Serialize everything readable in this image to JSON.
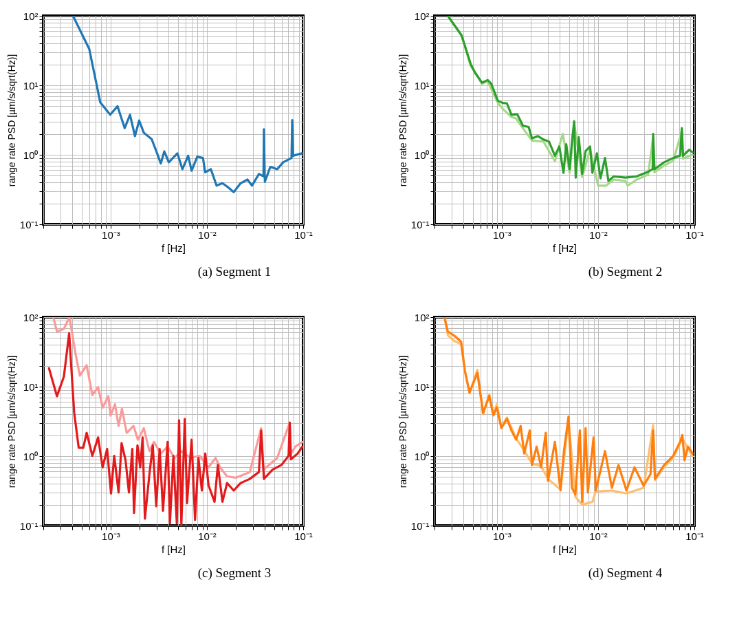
{
  "chart_data": [
    {
      "type": "line",
      "title": "(a) Segment 1",
      "xlabel": "f [Hz]",
      "ylabel": "range rate PSD [µm/s/sqrt(Hz)]",
      "log": "xy",
      "grid": true,
      "xlim": [
        0.0002,
        0.1
      ],
      "ylim": [
        0.1,
        100
      ],
      "xticks": [
        {
          "value": 0.0002,
          "label": null
        },
        {
          "value": 0.0003,
          "label": null
        },
        {
          "value": 0.0004,
          "label": null
        },
        {
          "value": 0.0005,
          "label": null
        },
        {
          "value": 0.0006,
          "label": null
        },
        {
          "value": 0.0007,
          "label": null
        },
        {
          "value": 0.0008,
          "label": null
        },
        {
          "value": 0.0009,
          "label": null
        },
        {
          "value": 0.001,
          "label": "10⁻³"
        },
        {
          "value": 0.002,
          "label": null
        },
        {
          "value": 0.003,
          "label": null
        },
        {
          "value": 0.004,
          "label": null
        },
        {
          "value": 0.005,
          "label": null
        },
        {
          "value": 0.006,
          "label": null
        },
        {
          "value": 0.007,
          "label": null
        },
        {
          "value": 0.008,
          "label": null
        },
        {
          "value": 0.009,
          "label": null
        },
        {
          "value": 0.01,
          "label": "10⁻²"
        },
        {
          "value": 0.02,
          "label": null
        },
        {
          "value": 0.03,
          "label": null
        },
        {
          "value": 0.04,
          "label": null
        },
        {
          "value": 0.05,
          "label": null
        },
        {
          "value": 0.06,
          "label": null
        },
        {
          "value": 0.07,
          "label": null
        },
        {
          "value": 0.08,
          "label": null
        },
        {
          "value": 0.09,
          "label": null
        },
        {
          "value": 0.1,
          "label": "10⁻¹"
        }
      ],
      "yticks": [
        {
          "value": 0.1,
          "label": "10⁻¹"
        },
        {
          "value": 0.2,
          "label": null
        },
        {
          "value": 0.3,
          "label": null
        },
        {
          "value": 0.4,
          "label": null
        },
        {
          "value": 0.5,
          "label": null
        },
        {
          "value": 0.6,
          "label": null
        },
        {
          "value": 0.7,
          "label": null
        },
        {
          "value": 0.8,
          "label": null
        },
        {
          "value": 0.9,
          "label": null
        },
        {
          "value": 1,
          "label": "10⁰"
        },
        {
          "value": 2,
          "label": null
        },
        {
          "value": 3,
          "label": null
        },
        {
          "value": 4,
          "label": null
        },
        {
          "value": 5,
          "label": null
        },
        {
          "value": 6,
          "label": null
        },
        {
          "value": 7,
          "label": null
        },
        {
          "value": 8,
          "label": null
        },
        {
          "value": 9,
          "label": null
        },
        {
          "value": 10,
          "label": "10¹"
        },
        {
          "value": 20,
          "label": null
        },
        {
          "value": 30,
          "label": null
        },
        {
          "value": 40,
          "label": null
        },
        {
          "value": 50,
          "label": null
        },
        {
          "value": 60,
          "label": null
        },
        {
          "value": 70,
          "label": null
        },
        {
          "value": 80,
          "label": null
        },
        {
          "value": 90,
          "label": null
        },
        {
          "value": 100,
          "label": "10²"
        }
      ],
      "series": [
        {
          "color": "#1f77b4",
          "x": [
            0.000407,
            0.0006,
            0.00078,
            0.00099,
            0.00118,
            0.0014,
            0.00159,
            0.00179,
            0.00198,
            0.00221,
            0.00267,
            0.00298,
            0.00332,
            0.00361,
            0.00402,
            0.00494,
            0.00557,
            0.00639,
            0.00694,
            0.00795,
            0.0091,
            0.0096,
            0.011,
            0.0126,
            0.0145,
            0.0166,
            0.019,
            0.0224,
            0.0264,
            0.0294,
            0.0347,
            0.0387,
            0.0391,
            0.04,
            0.0456,
            0.0537,
            0.062,
            0.0757,
            0.0769,
            0.0786,
            0.097
          ],
          "values": [
            100,
            33.3,
            5.7,
            3.77,
            5.0,
            2.42,
            3.77,
            1.86,
            3.11,
            2.08,
            1.68,
            1.13,
            0.75,
            1.12,
            0.78,
            1.05,
            0.62,
            0.97,
            0.59,
            0.94,
            0.9,
            0.56,
            0.62,
            0.36,
            0.39,
            0.34,
            0.29,
            0.39,
            0.44,
            0.36,
            0.53,
            0.49,
            2.33,
            0.41,
            0.67,
            0.62,
            0.78,
            0.9,
            3.16,
            0.97,
            1.05
          ]
        }
      ]
    },
    {
      "type": "line",
      "title": "(b) Segment 2",
      "xlabel": "f [Hz]",
      "ylabel": "range rate PSD [µm/s/sqrt(Hz)]",
      "log": "xy",
      "grid": true,
      "xlim": [
        0.0002,
        0.1
      ],
      "ylim": [
        0.1,
        100
      ],
      "xticks": [
        {
          "value": 0.0002,
          "label": null
        },
        {
          "value": 0.0003,
          "label": null
        },
        {
          "value": 0.0004,
          "label": null
        },
        {
          "value": 0.0005,
          "label": null
        },
        {
          "value": 0.0006,
          "label": null
        },
        {
          "value": 0.0007,
          "label": null
        },
        {
          "value": 0.0008,
          "label": null
        },
        {
          "value": 0.0009,
          "label": null
        },
        {
          "value": 0.001,
          "label": "10⁻³"
        },
        {
          "value": 0.002,
          "label": null
        },
        {
          "value": 0.003,
          "label": null
        },
        {
          "value": 0.004,
          "label": null
        },
        {
          "value": 0.005,
          "label": null
        },
        {
          "value": 0.006,
          "label": null
        },
        {
          "value": 0.007,
          "label": null
        },
        {
          "value": 0.008,
          "label": null
        },
        {
          "value": 0.009,
          "label": null
        },
        {
          "value": 0.01,
          "label": "10⁻²"
        },
        {
          "value": 0.02,
          "label": null
        },
        {
          "value": 0.03,
          "label": null
        },
        {
          "value": 0.04,
          "label": null
        },
        {
          "value": 0.05,
          "label": null
        },
        {
          "value": 0.06,
          "label": null
        },
        {
          "value": 0.07,
          "label": null
        },
        {
          "value": 0.08,
          "label": null
        },
        {
          "value": 0.09,
          "label": null
        },
        {
          "value": 0.1,
          "label": "10⁻¹"
        }
      ],
      "yticks": [
        {
          "value": 0.1,
          "label": "10⁻¹"
        },
        {
          "value": 0.2,
          "label": null
        },
        {
          "value": 0.3,
          "label": null
        },
        {
          "value": 0.4,
          "label": null
        },
        {
          "value": 0.5,
          "label": null
        },
        {
          "value": 0.6,
          "label": null
        },
        {
          "value": 0.7,
          "label": null
        },
        {
          "value": 0.8,
          "label": null
        },
        {
          "value": 0.9,
          "label": null
        },
        {
          "value": 1,
          "label": "10⁰"
        },
        {
          "value": 2,
          "label": null
        },
        {
          "value": 3,
          "label": null
        },
        {
          "value": 4,
          "label": null
        },
        {
          "value": 5,
          "label": null
        },
        {
          "value": 6,
          "label": null
        },
        {
          "value": 7,
          "label": null
        },
        {
          "value": 8,
          "label": null
        },
        {
          "value": 9,
          "label": null
        },
        {
          "value": 10,
          "label": "10¹"
        },
        {
          "value": 20,
          "label": null
        },
        {
          "value": 30,
          "label": null
        },
        {
          "value": 40,
          "label": null
        },
        {
          "value": 50,
          "label": null
        },
        {
          "value": 60,
          "label": null
        },
        {
          "value": 70,
          "label": null
        },
        {
          "value": 80,
          "label": null
        },
        {
          "value": 90,
          "label": null
        },
        {
          "value": 100,
          "label": "10²"
        }
      ],
      "series": [
        {
          "color": "#a6d889",
          "x": [
            0.000275,
            0.000382,
            0.000475,
            0.000558,
            0.000622,
            0.000713,
            0.00091,
            0.00102,
            0.00126,
            0.00141,
            0.00166,
            0.00206,
            0.00271,
            0.00356,
            0.0043,
            0.00506,
            0.00565,
            0.00684,
            0.00826,
            0.01,
            0.0121,
            0.0146,
            0.0192,
            0.0203,
            0.0252,
            0.0331,
            0.0373,
            0.0385,
            0.0485,
            0.0603,
            0.0741,
            0.0762,
            0.0957
          ],
          "values": [
            100,
            52,
            19,
            13.8,
            10.5,
            11.5,
            5.6,
            4.6,
            3.5,
            3.33,
            2.4,
            1.6,
            1.55,
            0.81,
            2.0,
            0.55,
            2.8,
            0.48,
            1.2,
            0.36,
            0.36,
            0.44,
            0.42,
            0.36,
            0.44,
            0.52,
            1.8,
            0.56,
            0.7,
            0.82,
            2.2,
            0.88,
            1.0
          ]
        },
        {
          "color": "#2ca02c",
          "x": [
            0.000275,
            0.000382,
            0.000475,
            0.00053,
            0.000622,
            0.000713,
            0.000774,
            0.00091,
            0.00102,
            0.00113,
            0.00126,
            0.00145,
            0.00166,
            0.0019,
            0.00206,
            0.00237,
            0.00271,
            0.0031,
            0.00356,
            0.00396,
            0.00437,
            0.00467,
            0.00506,
            0.00535,
            0.00565,
            0.00586,
            0.0063,
            0.00684,
            0.00741,
            0.00826,
            0.00873,
            0.00972,
            0.0106,
            0.0118,
            0.0128,
            0.0146,
            0.0192,
            0.0252,
            0.0331,
            0.0369,
            0.0373,
            0.0385,
            0.0485,
            0.0603,
            0.071,
            0.0741,
            0.0762,
            0.0883,
            0.0957
          ],
          "values": [
            100,
            52.5,
            20.3,
            15.0,
            10.9,
            11.9,
            10.6,
            6.0,
            5.58,
            5.5,
            3.77,
            3.82,
            2.61,
            2.52,
            1.72,
            1.86,
            1.66,
            1.54,
            0.97,
            1.32,
            0.55,
            1.42,
            0.62,
            1.54,
            3.04,
            0.47,
            1.79,
            0.53,
            1.13,
            1.32,
            0.55,
            1.05,
            0.46,
            0.9,
            0.42,
            0.49,
            0.47,
            0.49,
            0.57,
            0.62,
            2.0,
            0.62,
            0.78,
            0.9,
            0.97,
            2.42,
            0.97,
            1.18,
            1.09
          ]
        }
      ]
    },
    {
      "type": "line",
      "title": "(c) Segment 3",
      "xlabel": "f [Hz]",
      "ylabel": "range rate PSD [µm/s/sqrt(Hz)]",
      "log": "xy",
      "grid": true,
      "xlim": [
        0.0002,
        0.1
      ],
      "ylim": [
        0.1,
        100
      ],
      "xticks": [
        {
          "value": 0.0002,
          "label": null
        },
        {
          "value": 0.0003,
          "label": null
        },
        {
          "value": 0.0004,
          "label": null
        },
        {
          "value": 0.0005,
          "label": null
        },
        {
          "value": 0.0006,
          "label": null
        },
        {
          "value": 0.0007,
          "label": null
        },
        {
          "value": 0.0008,
          "label": null
        },
        {
          "value": 0.0009,
          "label": null
        },
        {
          "value": 0.001,
          "label": "10⁻³"
        },
        {
          "value": 0.002,
          "label": null
        },
        {
          "value": 0.003,
          "label": null
        },
        {
          "value": 0.004,
          "label": null
        },
        {
          "value": 0.005,
          "label": null
        },
        {
          "value": 0.006,
          "label": null
        },
        {
          "value": 0.007,
          "label": null
        },
        {
          "value": 0.008,
          "label": null
        },
        {
          "value": 0.009,
          "label": null
        },
        {
          "value": 0.01,
          "label": "10⁻²"
        },
        {
          "value": 0.02,
          "label": null
        },
        {
          "value": 0.03,
          "label": null
        },
        {
          "value": 0.04,
          "label": null
        },
        {
          "value": 0.05,
          "label": null
        },
        {
          "value": 0.06,
          "label": null
        },
        {
          "value": 0.07,
          "label": null
        },
        {
          "value": 0.08,
          "label": null
        },
        {
          "value": 0.09,
          "label": null
        },
        {
          "value": 0.1,
          "label": "10⁻¹"
        }
      ],
      "yticks": [
        {
          "value": 0.1,
          "label": "10⁻¹"
        },
        {
          "value": 0.2,
          "label": null
        },
        {
          "value": 0.3,
          "label": null
        },
        {
          "value": 0.4,
          "label": null
        },
        {
          "value": 0.5,
          "label": null
        },
        {
          "value": 0.6,
          "label": null
        },
        {
          "value": 0.7,
          "label": null
        },
        {
          "value": 0.8,
          "label": null
        },
        {
          "value": 0.9,
          "label": null
        },
        {
          "value": 1,
          "label": "10⁰"
        },
        {
          "value": 2,
          "label": null
        },
        {
          "value": 3,
          "label": null
        },
        {
          "value": 4,
          "label": null
        },
        {
          "value": 5,
          "label": null
        },
        {
          "value": 6,
          "label": null
        },
        {
          "value": 7,
          "label": null
        },
        {
          "value": 8,
          "label": null
        },
        {
          "value": 9,
          "label": null
        },
        {
          "value": 10,
          "label": "10¹"
        },
        {
          "value": 20,
          "label": null
        },
        {
          "value": 30,
          "label": null
        },
        {
          "value": 40,
          "label": null
        },
        {
          "value": 50,
          "label": null
        },
        {
          "value": 60,
          "label": null
        },
        {
          "value": 70,
          "label": null
        },
        {
          "value": 80,
          "label": null
        },
        {
          "value": 90,
          "label": null
        },
        {
          "value": 100,
          "label": "10²"
        }
      ],
      "series": [
        {
          "color": "#fb9a99",
          "x": [
            0.000256,
            0.000277,
            0.000327,
            0.000374,
            0.00043,
            0.000479,
            0.000564,
            0.000646,
            0.000741,
            0.000826,
            0.000947,
            0.001,
            0.00111,
            0.00121,
            0.00131,
            0.00147,
            0.00173,
            0.00192,
            0.00221,
            0.00253,
            0.00282,
            0.00332,
            0.00391,
            0.00461,
            0.00543,
            0.00675,
            0.00839,
            0.0104,
            0.0123,
            0.0137,
            0.0162,
            0.0201,
            0.0279,
            0.0366,
            0.0387,
            0.0537,
            0.0725,
            0.0745,
            0.083,
            0.098
          ],
          "values": [
            96,
            62,
            68,
            100,
            30.8,
            14.4,
            20.3,
            7.57,
            9.87,
            4.99,
            7.29,
            3.82,
            5.58,
            2.72,
            4.8,
            2.16,
            2.72,
            1.72,
            2.52,
            1.18,
            1.6,
            1.09,
            1.37,
            0.94,
            1.18,
            0.94,
            1.01,
            0.69,
            0.94,
            0.69,
            0.51,
            0.49,
            0.59,
            2.52,
            0.64,
            0.94,
            3.04,
            1.09,
            1.37,
            1.6
          ]
        },
        {
          "color": "#e31a1c",
          "x": [
            0.000229,
            0.000277,
            0.000327,
            0.000371,
            0.000418,
            0.000466,
            0.00052,
            0.000564,
            0.000646,
            0.000741,
            0.000826,
            0.00092,
            0.00101,
            0.00109,
            0.00121,
            0.0013,
            0.00143,
            0.00155,
            0.00168,
            0.00175,
            0.0019,
            0.00203,
            0.00215,
            0.00227,
            0.00253,
            0.00274,
            0.00298,
            0.00323,
            0.0035,
            0.00391,
            0.00413,
            0.00449,
            0.00487,
            0.00514,
            0.00543,
            0.00589,
            0.00622,
            0.00694,
            0.00753,
            0.00817,
            0.00887,
            0.00962,
            0.0104,
            0.012,
            0.013,
            0.0145,
            0.0162,
            0.019,
            0.0224,
            0.0279,
            0.0347,
            0.0366,
            0.0391,
            0.0481,
            0.0598,
            0.0705,
            0.0725,
            0.0745,
            0.0877,
            0.098
          ],
          "values": [
            18.4,
            7.29,
            13.9,
            58.7,
            4.28,
            1.32,
            1.32,
            2.16,
            1.01,
            1.86,
            0.69,
            1.27,
            0.29,
            1.01,
            0.3,
            1.54,
            0.87,
            0.3,
            1.27,
            0.152,
            1.43,
            0.69,
            1.86,
            0.126,
            0.55,
            1.43,
            0.19,
            1.27,
            0.164,
            1.6,
            0.108,
            1.01,
            0.108,
            3.28,
            0.104,
            3.41,
            0.21,
            1.72,
            0.121,
            0.94,
            0.32,
            1.09,
            0.38,
            0.22,
            0.75,
            0.22,
            0.41,
            0.32,
            0.41,
            0.47,
            0.59,
            2.33,
            0.47,
            0.64,
            0.75,
            1.01,
            3.04,
            0.9,
            1.09,
            1.37
          ]
        }
      ]
    },
    {
      "type": "line",
      "title": "(d) Segment 4",
      "xlabel": "f [Hz]",
      "ylabel": "range rate PSD [µm/s/sqrt(Hz)]",
      "log": "xy",
      "grid": true,
      "xlim": [
        0.0002,
        0.1
      ],
      "ylim": [
        0.1,
        100
      ],
      "xticks": [
        {
          "value": 0.0002,
          "label": null
        },
        {
          "value": 0.0003,
          "label": null
        },
        {
          "value": 0.0004,
          "label": null
        },
        {
          "value": 0.0005,
          "label": null
        },
        {
          "value": 0.0006,
          "label": null
        },
        {
          "value": 0.0007,
          "label": null
        },
        {
          "value": 0.0008,
          "label": null
        },
        {
          "value": 0.0009,
          "label": null
        },
        {
          "value": 0.001,
          "label": "10⁻³"
        },
        {
          "value": 0.002,
          "label": null
        },
        {
          "value": 0.003,
          "label": null
        },
        {
          "value": 0.004,
          "label": null
        },
        {
          "value": 0.005,
          "label": null
        },
        {
          "value": 0.006,
          "label": null
        },
        {
          "value": 0.007,
          "label": null
        },
        {
          "value": 0.008,
          "label": null
        },
        {
          "value": 0.009,
          "label": null
        },
        {
          "value": 0.01,
          "label": "10⁻²"
        },
        {
          "value": 0.02,
          "label": null
        },
        {
          "value": 0.03,
          "label": null
        },
        {
          "value": 0.04,
          "label": null
        },
        {
          "value": 0.05,
          "label": null
        },
        {
          "value": 0.06,
          "label": null
        },
        {
          "value": 0.07,
          "label": null
        },
        {
          "value": 0.08,
          "label": null
        },
        {
          "value": 0.09,
          "label": null
        },
        {
          "value": 0.1,
          "label": "10⁻¹"
        }
      ],
      "yticks": [
        {
          "value": 0.1,
          "label": "10⁻¹"
        },
        {
          "value": 0.2,
          "label": null
        },
        {
          "value": 0.3,
          "label": null
        },
        {
          "value": 0.4,
          "label": null
        },
        {
          "value": 0.5,
          "label": null
        },
        {
          "value": 0.6,
          "label": null
        },
        {
          "value": 0.7,
          "label": null
        },
        {
          "value": 0.8,
          "label": null
        },
        {
          "value": 0.9,
          "label": null
        },
        {
          "value": 1,
          "label": "10⁰"
        },
        {
          "value": 2,
          "label": null
        },
        {
          "value": 3,
          "label": null
        },
        {
          "value": 4,
          "label": null
        },
        {
          "value": 5,
          "label": null
        },
        {
          "value": 6,
          "label": null
        },
        {
          "value": 7,
          "label": null
        },
        {
          "value": 8,
          "label": null
        },
        {
          "value": 9,
          "label": null
        },
        {
          "value": 10,
          "label": "10¹"
        },
        {
          "value": 20,
          "label": null
        },
        {
          "value": 30,
          "label": null
        },
        {
          "value": 40,
          "label": null
        },
        {
          "value": 50,
          "label": null
        },
        {
          "value": 60,
          "label": null
        },
        {
          "value": 70,
          "label": null
        },
        {
          "value": 80,
          "label": null
        },
        {
          "value": 90,
          "label": null
        },
        {
          "value": 100,
          "label": "10²"
        }
      ],
      "series": [
        {
          "color": "#fdbf6f",
          "x": [
            0.000254,
            0.000275,
            0.000324,
            0.000378,
            0.000414,
            0.000462,
            0.000558,
            0.00064,
            0.000741,
            0.000818,
            0.000888,
            0.00099,
            0.00113,
            0.00141,
            0.00171,
            0.00206,
            0.00256,
            0.00302,
            0.00407,
            0.00493,
            0.00581,
            0.00684,
            0.00873,
            0.00947,
            0.0139,
            0.0197,
            0.0297,
            0.0373,
            0.039,
            0.0485,
            0.0603,
            0.075,
            0.0957
          ],
          "values": [
            100,
            55,
            45,
            41,
            16.5,
            8.0,
            17.5,
            4.0,
            7.8,
            3.9,
            5.6,
            2.6,
            3.6,
            1.8,
            1.2,
            0.78,
            0.72,
            0.47,
            0.33,
            3.3,
            0.26,
            0.2,
            0.22,
            0.31,
            0.32,
            0.29,
            0.35,
            2.8,
            0.45,
            0.7,
            0.95,
            1.8,
            1.0
          ]
        },
        {
          "color": "#ff7f0e",
          "x": [
            0.000254,
            0.000275,
            0.000324,
            0.000378,
            0.000414,
            0.000462,
            0.000558,
            0.00064,
            0.000741,
            0.000818,
            0.000888,
            0.00099,
            0.00113,
            0.00126,
            0.00141,
            0.00157,
            0.00171,
            0.00195,
            0.00206,
            0.0023,
            0.00256,
            0.00286,
            0.00302,
            0.00356,
            0.00407,
            0.00442,
            0.00493,
            0.00535,
            0.00581,
            0.00647,
            0.00684,
            0.00741,
            0.00783,
            0.00898,
            0.00947,
            0.0118,
            0.0139,
            0.0163,
            0.0197,
            0.0239,
            0.0297,
            0.035,
            0.0373,
            0.039,
            0.0485,
            0.0603,
            0.071,
            0.075,
            0.0791,
            0.0859,
            0.0957
          ],
          "values": [
            100,
            62.2,
            53.5,
            44.2,
            17.0,
            8.24,
            15.8,
            4.15,
            7.35,
            3.85,
            5.02,
            2.53,
            3.43,
            2.34,
            1.73,
            2.72,
            1.09,
            2.34,
            0.745,
            1.37,
            0.69,
            2.17,
            0.44,
            1.6,
            0.32,
            1.18,
            3.7,
            0.35,
            0.28,
            2.34,
            0.22,
            2.53,
            0.3,
            1.86,
            0.32,
            1.18,
            0.35,
            0.745,
            0.32,
            0.69,
            0.375,
            0.55,
            2.34,
            0.47,
            0.745,
            1.01,
            1.6,
            2.01,
            0.87,
            1.37,
            1.09
          ]
        }
      ]
    }
  ]
}
